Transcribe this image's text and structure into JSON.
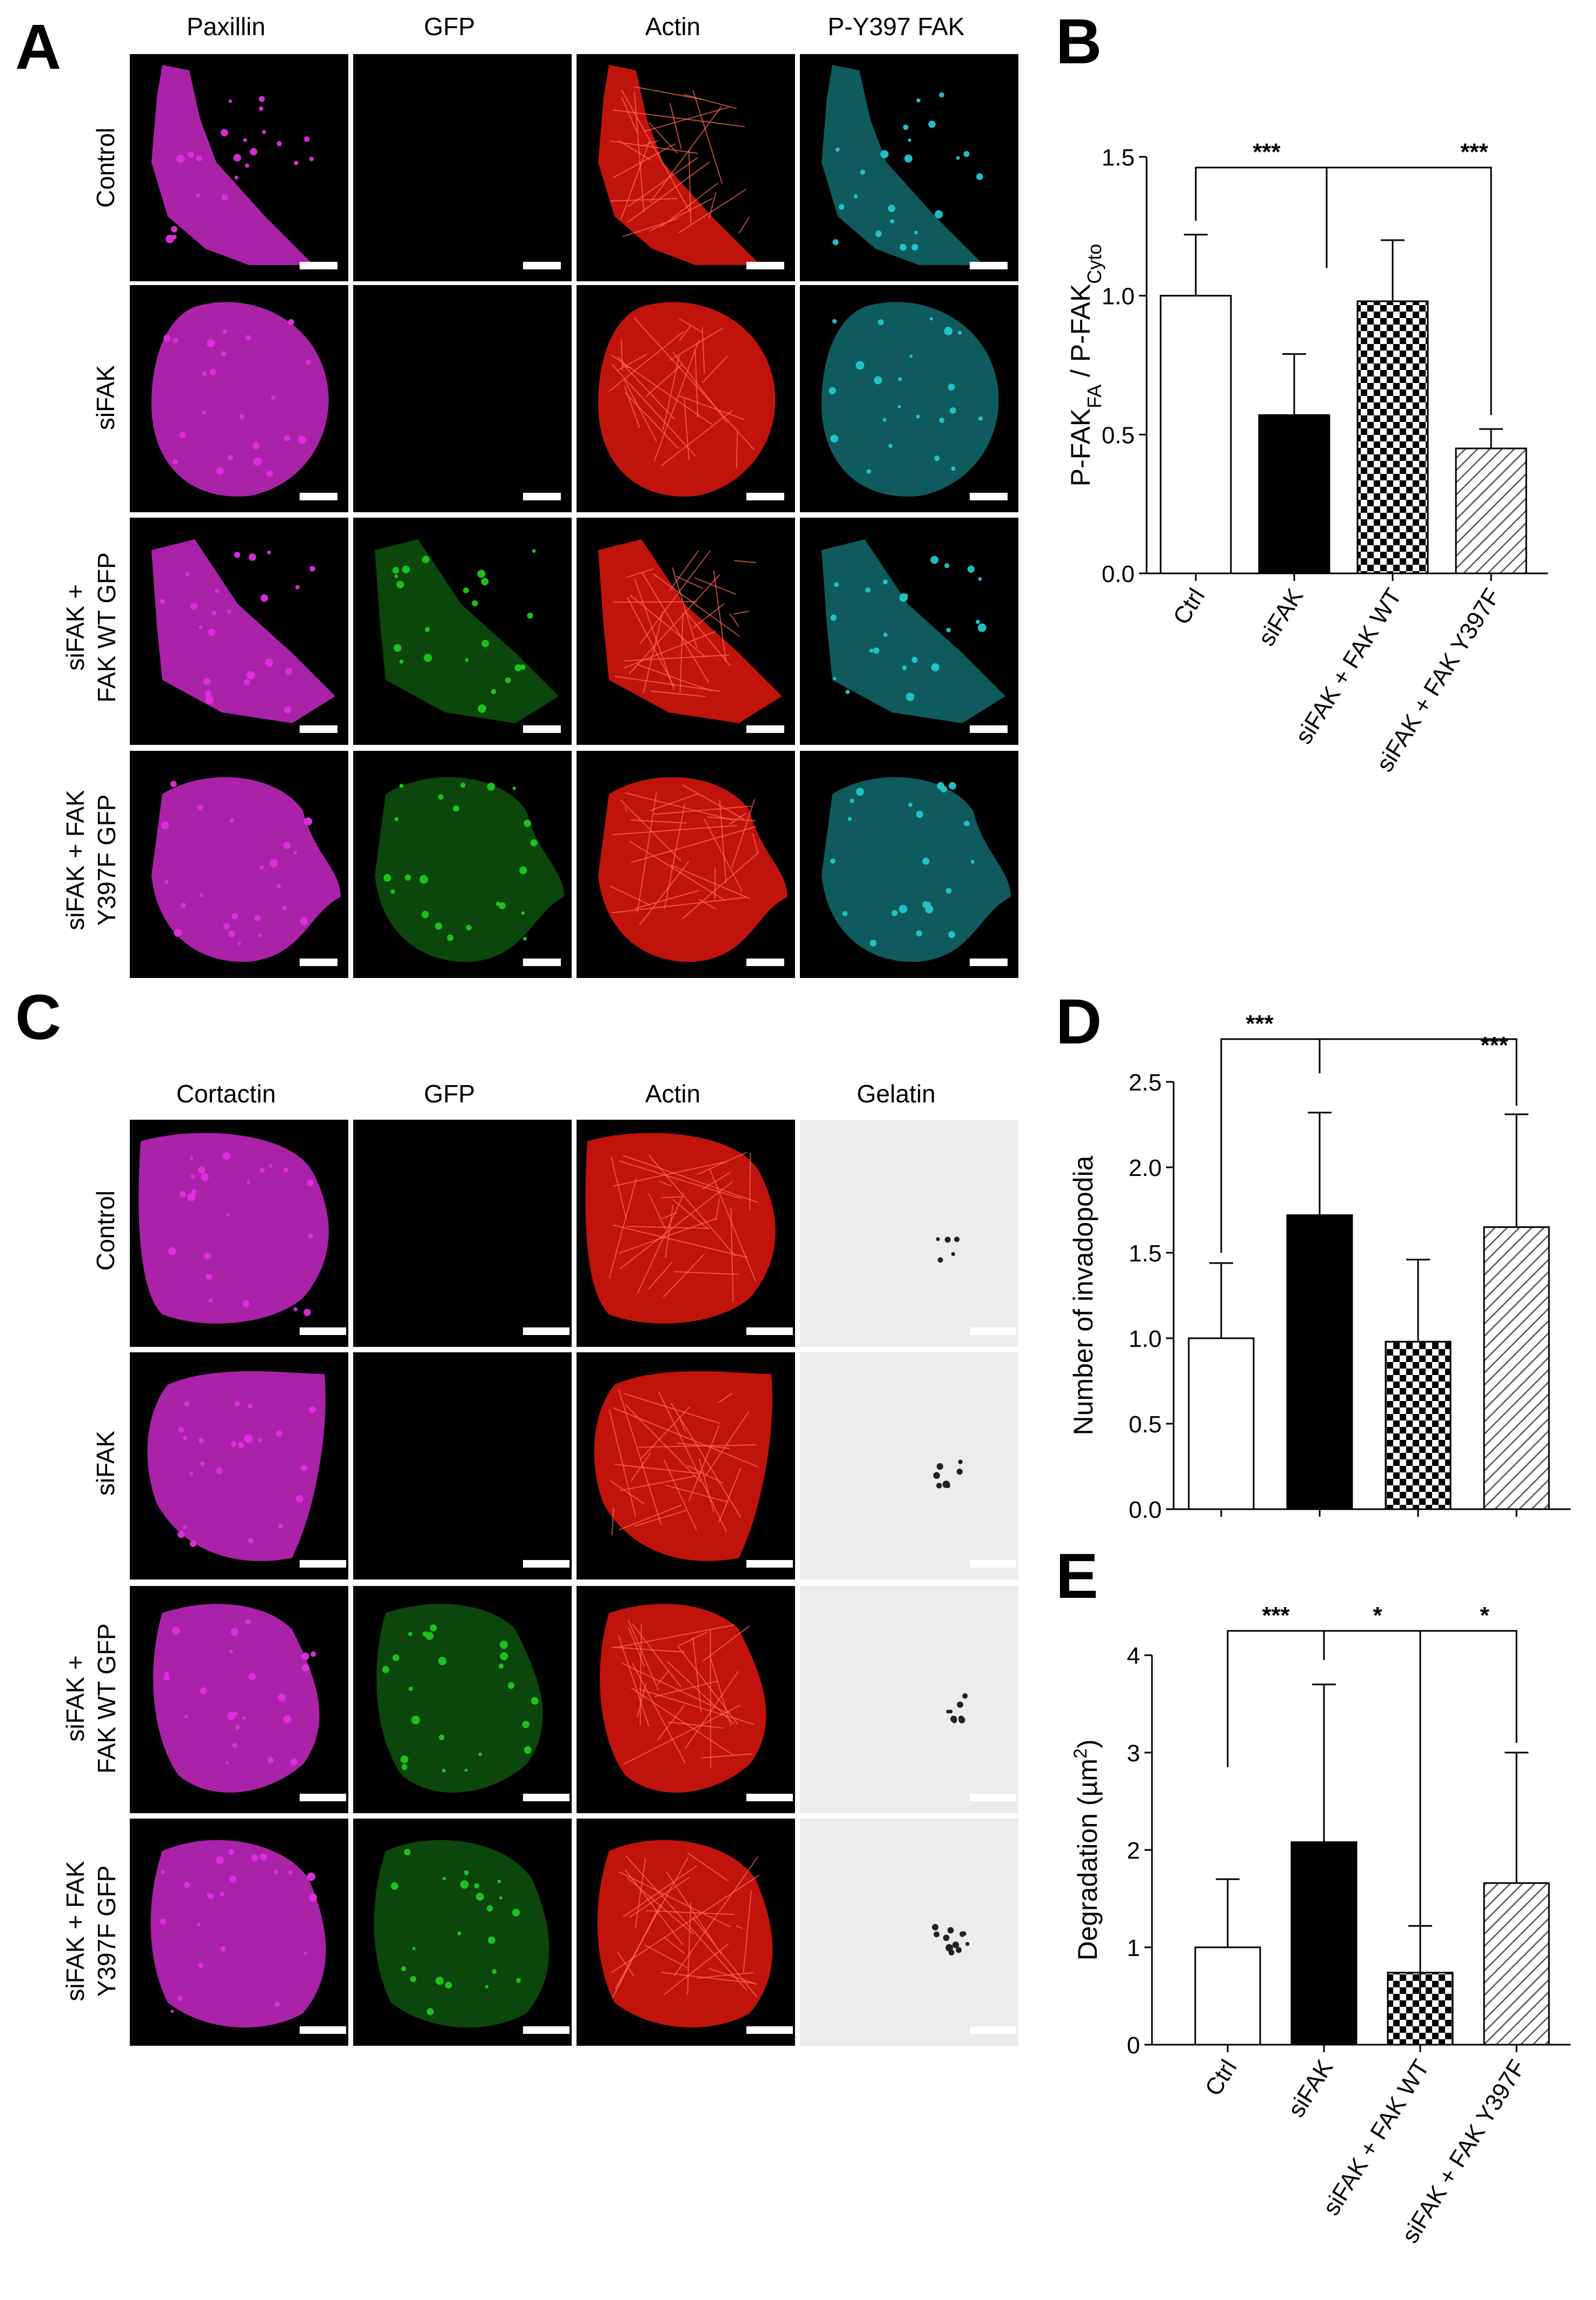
{
  "panels": {
    "A": "A",
    "B": "B",
    "C": "C",
    "D": "D",
    "E": "E"
  },
  "panelA": {
    "columns": [
      "Paxillin",
      "GFP",
      "Actin",
      "P-Y397 FAK"
    ],
    "rows": [
      {
        "lines": [
          "Control"
        ]
      },
      {
        "lines": [
          "siFAK"
        ]
      },
      {
        "lines": [
          "siFAK +",
          "FAK WT GFP"
        ]
      },
      {
        "lines": [
          "siFAK + FAK",
          "Y397F GFP"
        ]
      }
    ],
    "colors": {
      "Paxillin": "#e22ee0",
      "GFP": "#1fc81f",
      "Actin": "#ff1a10",
      "P-Y397 FAK": "#22c8cc"
    }
  },
  "panelC": {
    "columns": [
      "Cortactin",
      "GFP",
      "Actin",
      "Gelatin"
    ],
    "rows": [
      {
        "lines": [
          "Control"
        ]
      },
      {
        "lines": [
          "siFAK"
        ]
      },
      {
        "lines": [
          "siFAK +",
          "FAK WT GFP"
        ]
      },
      {
        "lines": [
          "siFAK + FAK",
          "Y397F GFP"
        ]
      }
    ],
    "colors": {
      "Cortactin": "#e22ee0",
      "GFP": "#1fc81f",
      "Actin": "#ff1a10",
      "Gelatin": "#e8e8e8"
    }
  },
  "chart_data": [
    {
      "id": "B",
      "type": "bar",
      "categories": [
        "Ctrl",
        "siFAK",
        "siFAK + FAK WT",
        "siFAK + FAK Y397F"
      ],
      "values": [
        1.0,
        0.57,
        0.98,
        0.45
      ],
      "errors": [
        0.22,
        0.22,
        0.22,
        0.07
      ],
      "fills": [
        "white",
        "black",
        "checker",
        "hatch"
      ],
      "ylabel_main": "P-FAK",
      "ylabel_sub1": "FA",
      "ylabel_mid": " / P-FAK",
      "ylabel_sub2": "Cyto",
      "ylim": [
        0,
        1.5
      ],
      "yticks": [
        "0.0",
        "0.5",
        "1.0",
        "1.5"
      ],
      "ytick_values": [
        0,
        0.5,
        1.0,
        1.5
      ],
      "significance": [
        "***",
        "***"
      ]
    },
    {
      "id": "D",
      "type": "bar",
      "categories": [
        "Ctrl",
        "siFAK",
        "siFAK + FAK WT",
        "siFAK + FAK Y397F"
      ],
      "values": [
        1.0,
        1.72,
        0.98,
        1.65
      ],
      "errors": [
        0.44,
        0.6,
        0.48,
        0.66
      ],
      "fills": [
        "white",
        "black",
        "checker",
        "hatch"
      ],
      "ylabel": "Number of invadopodia",
      "ylim": [
        0,
        2.5
      ],
      "yticks": [
        "0.0",
        "0.5",
        "1.0",
        "1.5",
        "2.0",
        "2.5"
      ],
      "ytick_values": [
        0,
        0.5,
        1.0,
        1.5,
        2.0,
        2.5
      ],
      "significance": [
        "***",
        "***"
      ]
    },
    {
      "id": "E",
      "type": "bar",
      "categories": [
        "Ctrl",
        "siFAK",
        "siFAK + FAK WT",
        "siFAK + FAK Y397F"
      ],
      "values": [
        1.0,
        2.08,
        0.74,
        1.66
      ],
      "errors": [
        0.7,
        1.62,
        0.48,
        1.34
      ],
      "fills": [
        "white",
        "black",
        "checker",
        "hatch"
      ],
      "ylabel_main": "Degradation (µm",
      "ylabel_sup": "2",
      "ylabel_end": ")",
      "ylim": [
        0,
        4
      ],
      "yticks": [
        "0",
        "1",
        "2",
        "3",
        "4"
      ],
      "ytick_values": [
        0,
        1,
        2,
        3,
        4
      ],
      "significance": [
        "***",
        "*",
        "*"
      ]
    }
  ]
}
